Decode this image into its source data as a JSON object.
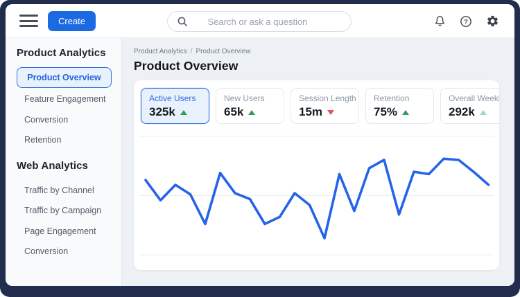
{
  "topbar": {
    "create_label": "Create",
    "search_placeholder": "Search or ask a question",
    "icons": [
      "hamburger-icon",
      "search-icon",
      "bell-icon",
      "help-icon",
      "gear-icon"
    ]
  },
  "sidebar": {
    "sections": [
      {
        "title": "Product Analytics",
        "items": [
          {
            "label": "Product Overview",
            "active": true
          },
          {
            "label": "Feature Engagement",
            "active": false
          },
          {
            "label": "Conversion",
            "active": false
          },
          {
            "label": "Retention",
            "active": false
          }
        ]
      },
      {
        "title": "Web Analytics",
        "items": [
          {
            "label": "Traffic by Channel",
            "active": false
          },
          {
            "label": "Traffic by Campaign",
            "active": false
          },
          {
            "label": "Page Engagement",
            "active": false
          },
          {
            "label": "Conversion",
            "active": false
          }
        ]
      }
    ]
  },
  "breadcrumb": {
    "parts": [
      "Product Analytics",
      "Product Overview"
    ],
    "separator": "/"
  },
  "page_title": "Product Overview",
  "metrics": [
    {
      "label": "Active Users",
      "value": "325k",
      "trend": "up",
      "trend_color": "#2e9e5f",
      "active": true
    },
    {
      "label": "New Users",
      "value": "65k",
      "trend": "up",
      "trend_color": "#2e9e5f",
      "active": false
    },
    {
      "label": "Session Length",
      "value": "15m",
      "trend": "down",
      "trend_color": "#e25555",
      "active": false
    },
    {
      "label": "Retention",
      "value": "75%",
      "trend": "up",
      "trend_color": "#2e9e5f",
      "active": false
    },
    {
      "label": "Overall Weekly A",
      "value": "292k",
      "trend": "up",
      "trend_color": "#a5d7ba",
      "active": false
    }
  ],
  "chart_data": {
    "type": "line",
    "title": "",
    "xlabel": "",
    "ylabel": "",
    "x": [
      1,
      2,
      3,
      4,
      5,
      6,
      7,
      8,
      9,
      10,
      11,
      12,
      13,
      14,
      15,
      16,
      17,
      18,
      19,
      20,
      21,
      22,
      23,
      24
    ],
    "values": [
      63,
      46,
      59,
      51,
      26,
      69,
      52,
      47,
      26,
      32,
      52,
      42,
      14,
      68,
      37,
      73,
      80,
      34,
      70,
      68,
      81,
      80,
      70,
      59
    ],
    "ylim": [
      0,
      100
    ],
    "grid": true,
    "gridline_count": 3,
    "tick_labels_visible": false,
    "legend": "none",
    "line_color": "#2563e8"
  },
  "colors": {
    "frame": "#222d4e",
    "accent_blue": "#1b6ae3",
    "active_fill": "#e9f1fc",
    "active_border": "#2e6fe3",
    "main_bg": "#edf1f6",
    "sidebar_bg": "#f8fafc",
    "grid_line": "#e8ecf1",
    "trend_up_green": "#2e9e5f",
    "trend_down_red": "#e25555"
  }
}
